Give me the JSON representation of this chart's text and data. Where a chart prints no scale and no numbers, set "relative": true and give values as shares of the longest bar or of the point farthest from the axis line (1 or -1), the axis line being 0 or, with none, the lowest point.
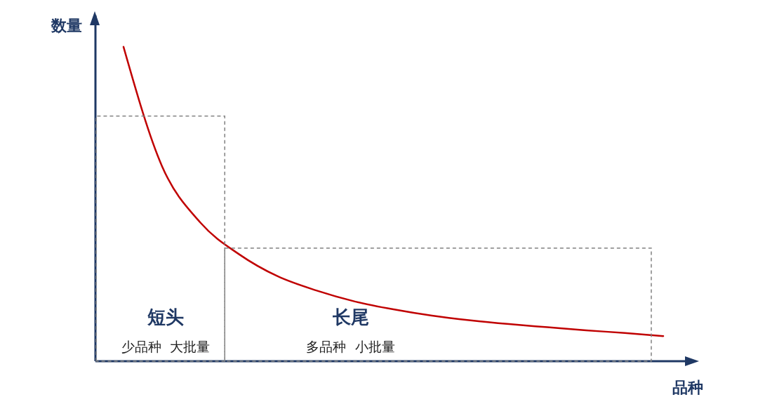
{
  "chart_data": {
    "type": "line",
    "relative": true,
    "xlabel": "品种",
    "ylabel": "数量",
    "categories": [
      null,
      null,
      null,
      null,
      null,
      null,
      null,
      null,
      null,
      null,
      null,
      null,
      null,
      null,
      null
    ],
    "series": [
      {
        "color": "#c00000",
        "values": [
          1,
          0.62,
          0.44,
          0.34,
          0.27,
          0.225,
          0.19,
          0.165,
          0.145,
          0.13,
          0.118,
          0.108,
          0.098,
          0.09,
          0.08
        ]
      }
    ],
    "marker": "none",
    "annotations": [
      "短头",
      "少品种  大批量",
      "长尾",
      "多品种  小批量"
    ]
  }
}
